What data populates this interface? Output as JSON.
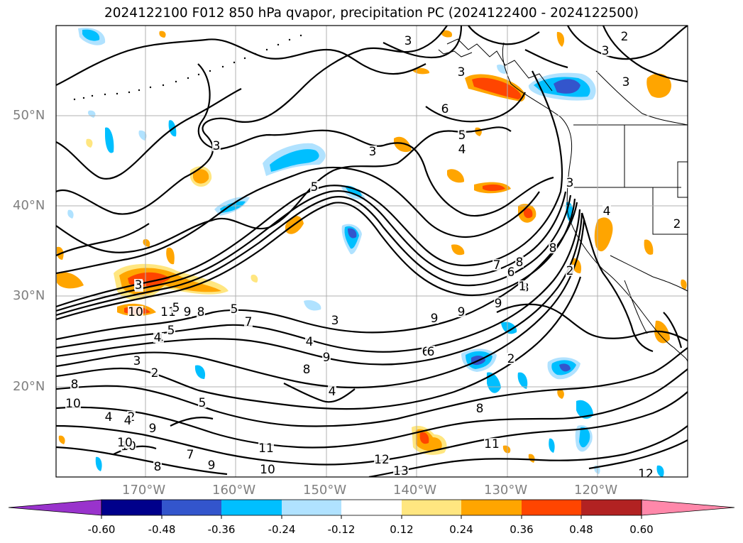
{
  "title": "2024122100 F012 850 hPa qvapor, precipitation PC (2024122400 - 2024122500)",
  "lat_labels": [
    "50°N",
    "40°N",
    "30°N",
    "20°N"
  ],
  "lon_labels": [
    "170°W",
    "160°W",
    "150°W",
    "140°W",
    "130°W",
    "120°W"
  ],
  "colorbar": {
    "ticks": [
      "-0.60",
      "-0.48",
      "-0.36",
      "-0.24",
      "-0.12",
      "0.12",
      "0.24",
      "0.36",
      "0.48",
      "0.60"
    ],
    "colors": [
      "#9933cc",
      "#00008b",
      "#3355cc",
      "#00bfff",
      "#b0e2ff",
      "#ffffff",
      "#ffe680",
      "#ffa500",
      "#ff4500",
      "#b22222",
      "#ff88aa"
    ]
  },
  "contour_labels": [
    "3",
    "2",
    "3",
    "3",
    "6",
    "5",
    "4",
    "3",
    "3",
    "5",
    "4",
    "3",
    "8",
    "8",
    "7",
    "6",
    "9",
    "9",
    "9",
    "8",
    "6",
    "7",
    "5",
    "3",
    "4",
    "9",
    "8",
    "5",
    "4",
    "5",
    "10",
    "11",
    "9",
    "8",
    "5",
    "4",
    "3",
    "2",
    "8",
    "10",
    "5",
    "4",
    "9",
    "10",
    "11",
    "8",
    "7",
    "9",
    "10",
    "12",
    "13",
    "11",
    "12",
    "2",
    "2",
    "2",
    "8",
    "6",
    "4",
    "2",
    "1",
    "3",
    "4",
    "3",
    "10"
  ]
}
